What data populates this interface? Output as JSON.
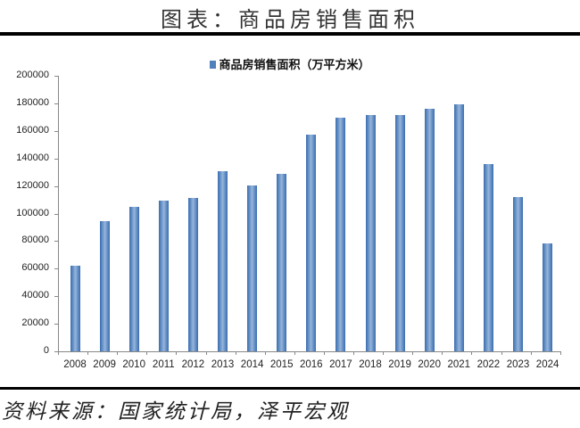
{
  "header": {
    "title": "图表：商品房销售面积"
  },
  "footer": {
    "source": "资料来源：国家统计局，泽平宏观"
  },
  "colors": {
    "bar": "#4F81BD",
    "rule": "#000000"
  },
  "chart_data": {
    "type": "bar",
    "title": "",
    "legend": [
      "商品房销售面积（万平方米）"
    ],
    "legend_position": "top",
    "xlabel": "",
    "ylabel": "",
    "ylim": [
      0,
      200000
    ],
    "yticks": [
      0,
      20000,
      40000,
      60000,
      80000,
      100000,
      120000,
      140000,
      160000,
      180000,
      200000
    ],
    "grid": false,
    "categories": [
      "2008",
      "2009",
      "2010",
      "2011",
      "2012",
      "2013",
      "2014",
      "2015",
      "2016",
      "2017",
      "2018",
      "2019",
      "2020",
      "2021",
      "2022",
      "2023",
      "2024"
    ],
    "series": [
      {
        "name": "商品房销售面积（万平方米）",
        "values": [
          62089,
          94755,
          104765,
          109367,
          111304,
          130551,
          120649,
          128495,
          157349,
          169408,
          171465,
          171558,
          176086,
          179433,
          135837,
          111735,
          78000
        ]
      }
    ]
  }
}
